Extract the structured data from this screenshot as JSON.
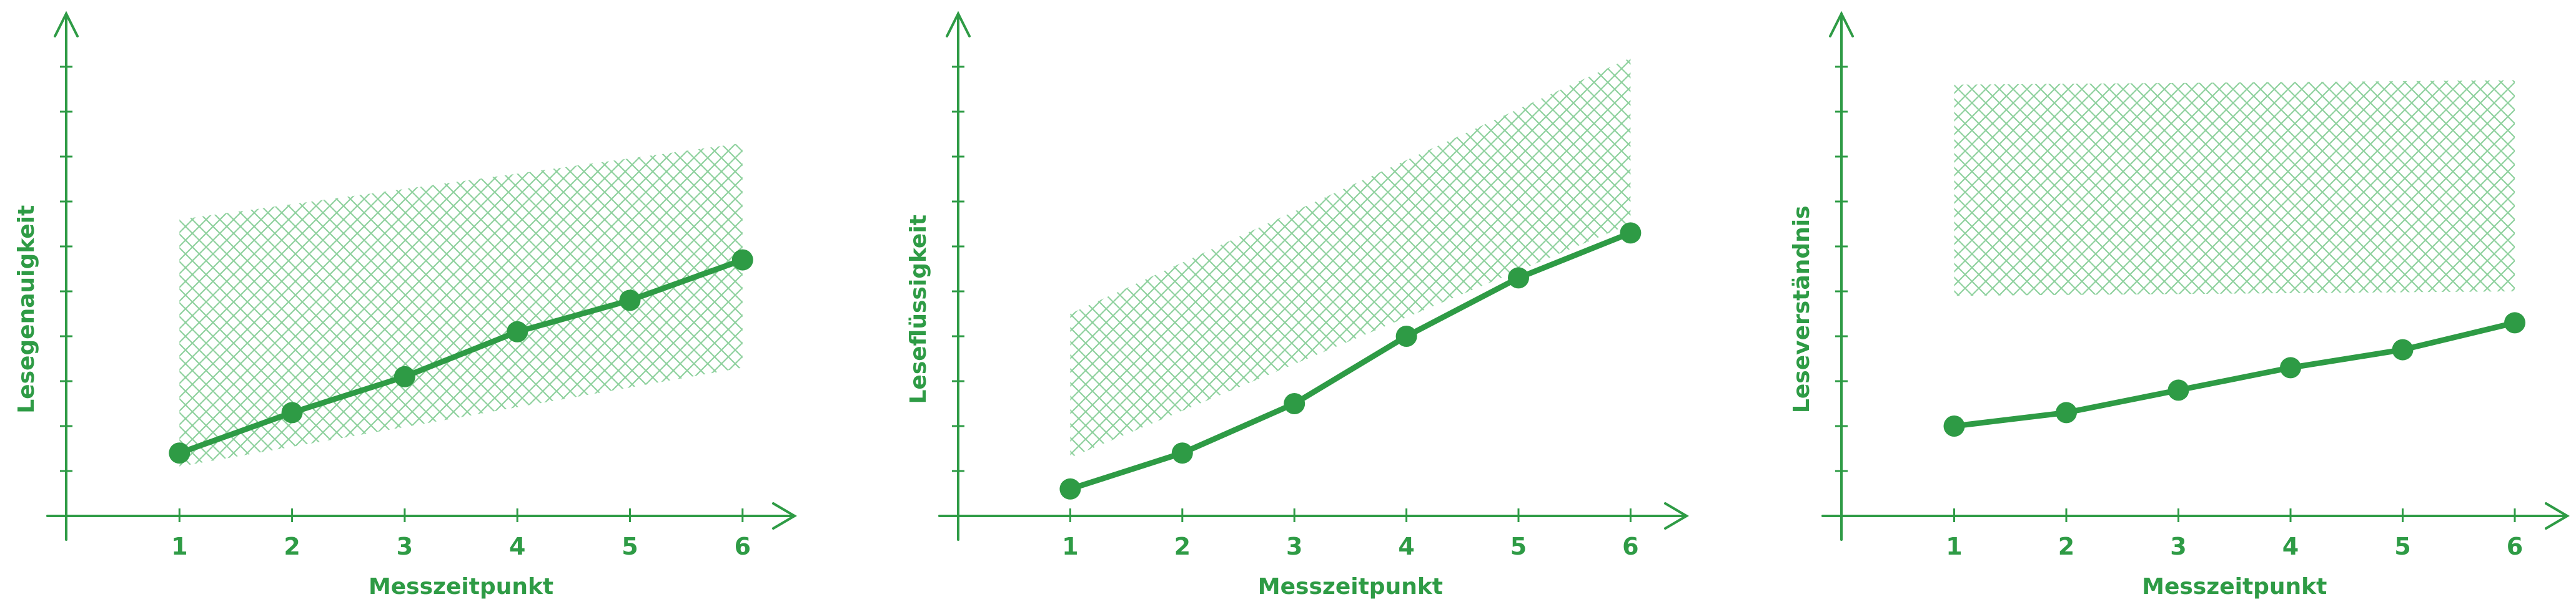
{
  "colors": {
    "line": "#2e9b45",
    "band": "#8fd19e"
  },
  "chart_data": [
    {
      "type": "line",
      "title": "",
      "xlabel": "Messzeitpunkt",
      "ylabel": "Lesegenauigkeit",
      "x": [
        1,
        2,
        3,
        4,
        5,
        6
      ],
      "xticks": [
        "1",
        "2",
        "3",
        "4",
        "5",
        "6"
      ],
      "ylim": [
        0,
        11
      ],
      "yticks_unlabeled": 10,
      "grid": false,
      "series": [
        {
          "values": [
            1.4,
            2.3,
            3.1,
            4.1,
            4.8,
            5.7
          ]
        }
      ],
      "band": {
        "lower": [
          1.1,
          3.3
        ],
        "upper": [
          6.6,
          8.3
        ]
      }
    },
    {
      "type": "line",
      "title": "",
      "xlabel": "Messzeitpunkt",
      "ylabel": "Leseflüssigkeit",
      "x": [
        1,
        2,
        3,
        4,
        5,
        6
      ],
      "xticks": [
        "1",
        "2",
        "3",
        "4",
        "5",
        "6"
      ],
      "ylim": [
        0,
        11
      ],
      "yticks_unlabeled": 10,
      "grid": false,
      "series": [
        {
          "values": [
            0.6,
            1.4,
            2.5,
            4.0,
            5.3,
            6.3
          ]
        }
      ],
      "band": {
        "lower": [
          1.3,
          6.5
        ],
        "upper": [
          4.5,
          10.2
        ]
      }
    },
    {
      "type": "line",
      "title": "",
      "xlabel": "Messzeitpunkt",
      "ylabel": "Leseverständnis",
      "x": [
        1,
        2,
        3,
        4,
        5,
        6
      ],
      "xticks": [
        "1",
        "2",
        "3",
        "4",
        "5",
        "6"
      ],
      "ylim": [
        0,
        11
      ],
      "yticks_unlabeled": 10,
      "grid": false,
      "series": [
        {
          "values": [
            2.0,
            2.3,
            2.8,
            3.3,
            3.7,
            4.3
          ]
        }
      ],
      "band": {
        "lower": [
          4.9,
          5.0
        ],
        "upper": [
          9.6,
          9.7
        ]
      }
    }
  ]
}
